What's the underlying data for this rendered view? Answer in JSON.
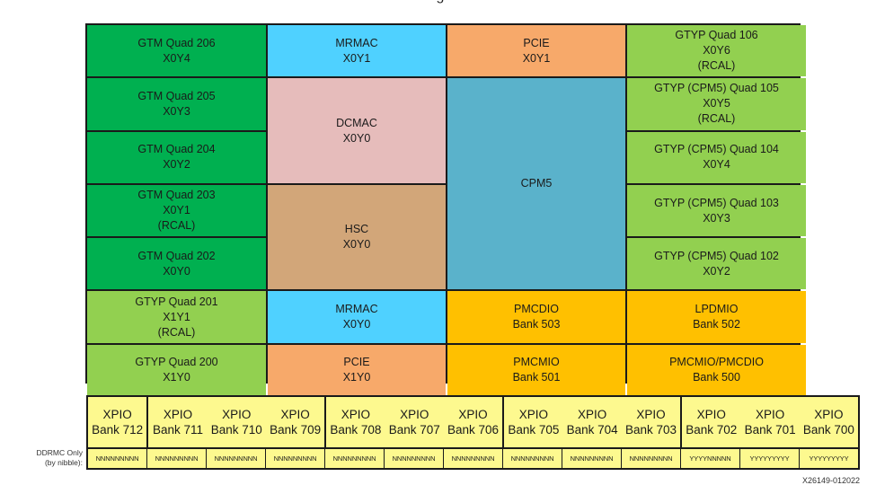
{
  "title_fragment": "g",
  "colors": {
    "gtm": "#00b050",
    "gtyp": "#92d050",
    "mrmac": "#4fd1ff",
    "pcie": "#f7a96a",
    "dcmac": "#e6bcbb",
    "hsc": "#d2a679",
    "cpm5": "#5ab2cb",
    "pmcio": "#ffc000",
    "xpio": "#fdf98f",
    "border": "#1a1a1a"
  },
  "blocks": [
    {
      "id": "gtm-206",
      "label": "GTM Quad 206\nX0Y4",
      "col": 1,
      "row": 1,
      "rowspan": 1,
      "type": "gtm"
    },
    {
      "id": "gtm-205",
      "label": "GTM Quad 205\nX0Y3",
      "col": 1,
      "row": 2,
      "rowspan": 1,
      "type": "gtm"
    },
    {
      "id": "gtm-204",
      "label": "GTM Quad 204\nX0Y2",
      "col": 1,
      "row": 3,
      "rowspan": 1,
      "type": "gtm"
    },
    {
      "id": "gtm-203",
      "label": "GTM Quad 203\nX0Y1\n(RCAL)",
      "col": 1,
      "row": 4,
      "rowspan": 1,
      "type": "gtm"
    },
    {
      "id": "gtm-202",
      "label": "GTM Quad 202\nX0Y0",
      "col": 1,
      "row": 5,
      "rowspan": 1,
      "type": "gtm"
    },
    {
      "id": "gtyp-201",
      "label": "GTYP Quad 201\nX1Y1\n(RCAL)",
      "col": 1,
      "row": 6,
      "rowspan": 1,
      "type": "gtyp"
    },
    {
      "id": "gtyp-200",
      "label": "GTYP Quad 200\nX1Y0",
      "col": 1,
      "row": 7,
      "rowspan": 1,
      "type": "gtyp"
    },
    {
      "id": "mrmac-x0y1",
      "label": "MRMAC\nX0Y1",
      "col": 2,
      "row": 1,
      "rowspan": 1,
      "type": "mrmac"
    },
    {
      "id": "dcmac-x0y0",
      "label": "DCMAC\nX0Y0",
      "col": 2,
      "row": 2,
      "rowspan": 2,
      "type": "dcmac"
    },
    {
      "id": "hsc-x0y0",
      "label": "HSC\nX0Y0",
      "col": 2,
      "row": 4,
      "rowspan": 2,
      "type": "hsc"
    },
    {
      "id": "mrmac-x0y0",
      "label": "MRMAC\nX0Y0",
      "col": 2,
      "row": 6,
      "rowspan": 1,
      "type": "mrmac"
    },
    {
      "id": "pcie-x1y0",
      "label": "PCIE\nX1Y0",
      "col": 2,
      "row": 7,
      "rowspan": 1,
      "type": "pcie"
    },
    {
      "id": "pcie-x0y1",
      "label": "PCIE\nX0Y1",
      "col": 3,
      "row": 1,
      "rowspan": 1,
      "type": "pcie"
    },
    {
      "id": "cpm5",
      "label": "CPM5",
      "col": 3,
      "row": 2,
      "rowspan": 4,
      "type": "cpm5"
    },
    {
      "id": "pmcdio-503",
      "label": "PMCDIO\nBank 503",
      "col": 3,
      "row": 6,
      "rowspan": 1,
      "type": "pmcio"
    },
    {
      "id": "pmcmio-501",
      "label": "PMCMIO\nBank 501",
      "col": 3,
      "row": 7,
      "rowspan": 1,
      "type": "pmcio"
    },
    {
      "id": "gtyp-106",
      "label": "GTYP Quad 106\nX0Y6\n(RCAL)",
      "col": 4,
      "row": 1,
      "rowspan": 1,
      "type": "gtyp"
    },
    {
      "id": "gtyp-105",
      "label": "GTYP (CPM5) Quad 105\nX0Y5\n(RCAL)",
      "col": 4,
      "row": 2,
      "rowspan": 1,
      "type": "gtyp"
    },
    {
      "id": "gtyp-104",
      "label": "GTYP (CPM5) Quad 104\nX0Y4",
      "col": 4,
      "row": 3,
      "rowspan": 1,
      "type": "gtyp"
    },
    {
      "id": "gtyp-103",
      "label": "GTYP (CPM5) Quad 103\nX0Y3",
      "col": 4,
      "row": 4,
      "rowspan": 1,
      "type": "gtyp"
    },
    {
      "id": "gtyp-102",
      "label": "GTYP (CPM5) Quad 102\nX0Y2",
      "col": 4,
      "row": 5,
      "rowspan": 1,
      "type": "gtyp"
    },
    {
      "id": "lpdmio-502",
      "label": "LPDMIO\nBank 502",
      "col": 4,
      "row": 6,
      "rowspan": 1,
      "type": "pmcio"
    },
    {
      "id": "pmcmio-500",
      "label": "PMCMIO/PMCDIO\nBank 500",
      "col": 4,
      "row": 7,
      "rowspan": 1,
      "type": "pmcio"
    }
  ],
  "xpio": {
    "ddrmc_label": "DDRMC Only\n(by nibble):",
    "banks": [
      {
        "label": "XPIO\nBank 712",
        "nibble": "NNNNNNNNN",
        "group_start": true
      },
      {
        "label": "XPIO\nBank 711",
        "nibble": "NNNNNNNNN",
        "group_start": true
      },
      {
        "label": "XPIO\nBank 710",
        "nibble": "NNNNNNNNN",
        "group_start": false
      },
      {
        "label": "XPIO\nBank 709",
        "nibble": "NNNNNNNNN",
        "group_start": false
      },
      {
        "label": "XPIO\nBank 708",
        "nibble": "NNNNNNNNN",
        "group_start": true
      },
      {
        "label": "XPIO\nBank 707",
        "nibble": "NNNNNNNNN",
        "group_start": false
      },
      {
        "label": "XPIO\nBank 706",
        "nibble": "NNNNNNNNN",
        "group_start": false
      },
      {
        "label": "XPIO\nBank 705",
        "nibble": "NNNNNNNNN",
        "group_start": true
      },
      {
        "label": "XPIO\nBank 704",
        "nibble": "NNNNNNNNN",
        "group_start": false
      },
      {
        "label": "XPIO\nBank 703",
        "nibble": "NNNNNNNNN",
        "group_start": false
      },
      {
        "label": "XPIO\nBank 702",
        "nibble": "YYYYNNNNN",
        "group_start": true
      },
      {
        "label": "XPIO\nBank 701",
        "nibble": "YYYYYYYYY",
        "group_start": false
      },
      {
        "label": "XPIO\nBank 700",
        "nibble": "YYYYYYYYY",
        "group_start": false
      }
    ]
  },
  "figure_id": "X26149-012022"
}
